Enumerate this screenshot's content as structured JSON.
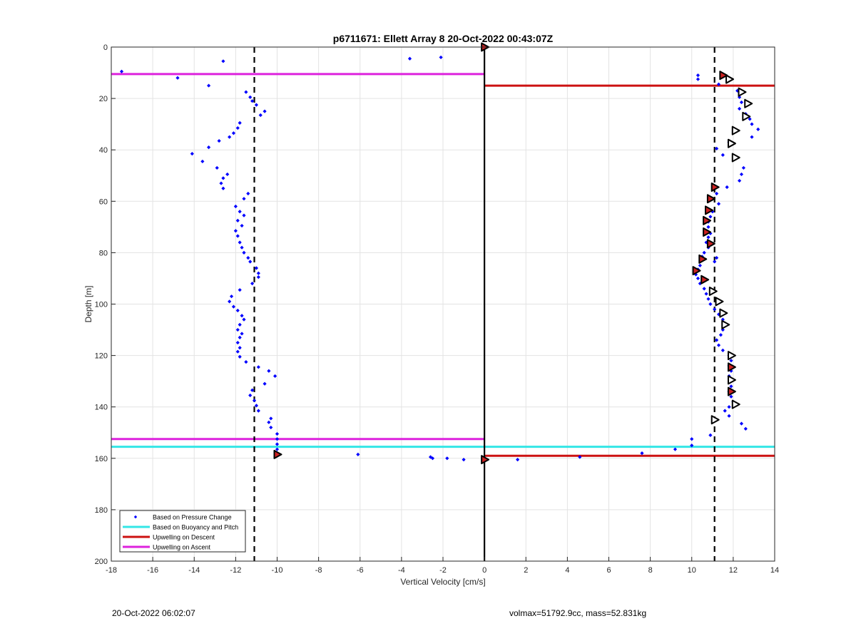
{
  "chart_data": {
    "type": "scatter",
    "title": "p6711671: Ellett Array 8 20-Oct-2022 00:43:07Z",
    "xlabel": "Vertical Velocity [cm/s]",
    "ylabel": "Depth [m]",
    "xlim": [
      -18,
      14
    ],
    "ylim": [
      0,
      200
    ],
    "y_reversed": true,
    "grid": true,
    "legend_location": "bottom-left",
    "x_ticks": [
      -18,
      -16,
      -14,
      -12,
      -10,
      -8,
      -6,
      -4,
      -2,
      0,
      2,
      4,
      6,
      8,
      10,
      12,
      14
    ],
    "y_ticks": [
      0,
      20,
      40,
      60,
      80,
      100,
      120,
      140,
      160,
      180,
      200
    ],
    "legend": [
      {
        "label": "Based on Pressure Change",
        "color": "#0000ff",
        "kind": "point"
      },
      {
        "label": "Based on Buoyancy and Pitch",
        "color": "#33e6e6",
        "kind": "line"
      },
      {
        "label": "Upwelling on Descent",
        "color": "#cc1111",
        "kind": "line"
      },
      {
        "label": "Upwelling on Ascent",
        "color": "#dd22dd",
        "kind": "line"
      }
    ],
    "pressure_change_points": [
      [
        -17.5,
        9.5
      ],
      [
        -14.8,
        12
      ],
      [
        -12.6,
        5.5
      ],
      [
        -13.3,
        15
      ],
      [
        -3.6,
        4.5
      ],
      [
        -2.1,
        4
      ],
      [
        -11.5,
        17.5
      ],
      [
        -11.3,
        19.5
      ],
      [
        -11.2,
        21
      ],
      [
        -11.0,
        22.5
      ],
      [
        -10.6,
        25
      ],
      [
        -10.8,
        26.5
      ],
      [
        -11.8,
        29.5
      ],
      [
        -11.9,
        31.5
      ],
      [
        -12.1,
        33.5
      ],
      [
        -12.3,
        35
      ],
      [
        -12.8,
        36.5
      ],
      [
        -13.3,
        39
      ],
      [
        -14.1,
        41.5
      ],
      [
        -13.6,
        44.5
      ],
      [
        -12.9,
        47
      ],
      [
        -12.4,
        49.5
      ],
      [
        -12.6,
        51
      ],
      [
        -12.7,
        53
      ],
      [
        -12.6,
        55
      ],
      [
        -11.4,
        57
      ],
      [
        -11.6,
        59
      ],
      [
        -12.0,
        62
      ],
      [
        -11.8,
        64
      ],
      [
        -11.6,
        65.5
      ],
      [
        -11.9,
        67.5
      ],
      [
        -11.7,
        69.5
      ],
      [
        -12.0,
        71.5
      ],
      [
        -11.9,
        73.5
      ],
      [
        -11.8,
        76
      ],
      [
        -11.7,
        78
      ],
      [
        -11.6,
        80
      ],
      [
        -11.4,
        82
      ],
      [
        -11.3,
        83.5
      ],
      [
        -11.0,
        86
      ],
      [
        -10.9,
        88
      ],
      [
        -10.9,
        89.5
      ],
      [
        -11.2,
        92
      ],
      [
        -11.8,
        94.5
      ],
      [
        -12.2,
        97
      ],
      [
        -12.3,
        99
      ],
      [
        -12.1,
        101
      ],
      [
        -11.9,
        102.5
      ],
      [
        -11.7,
        104.5
      ],
      [
        -11.6,
        106
      ],
      [
        -11.8,
        108
      ],
      [
        -11.9,
        110
      ],
      [
        -11.7,
        111.5
      ],
      [
        -11.8,
        113
      ],
      [
        -11.9,
        115
      ],
      [
        -11.8,
        117
      ],
      [
        -11.9,
        118.5
      ],
      [
        -11.8,
        120.5
      ],
      [
        -11.5,
        122.5
      ],
      [
        -10.9,
        124.5
      ],
      [
        -10.4,
        126
      ],
      [
        -10.1,
        128
      ],
      [
        -10.6,
        131
      ],
      [
        -11.2,
        133.5
      ],
      [
        -11.3,
        135.5
      ],
      [
        -11.1,
        137.5
      ],
      [
        -11.0,
        139.5
      ],
      [
        -10.9,
        141.5
      ],
      [
        -10.3,
        144.5
      ],
      [
        -10.4,
        146
      ],
      [
        -10.3,
        148
      ],
      [
        -10.0,
        150.5
      ],
      [
        -10.0,
        152.5
      ],
      [
        -10.0,
        154.5
      ],
      [
        -10.0,
        156.5
      ],
      [
        -10.0,
        158.5
      ],
      [
        -6.1,
        158.5
      ],
      [
        -2.6,
        159.5
      ],
      [
        -2.5,
        160
      ],
      [
        -1.8,
        160
      ],
      [
        -1.0,
        160.5
      ],
      [
        0.0,
        160.5
      ],
      [
        1.6,
        160.5
      ],
      [
        4.6,
        159.5
      ],
      [
        7.6,
        158
      ],
      [
        9.2,
        156.5
      ],
      [
        10.0,
        155
      ],
      [
        10.0,
        152.5
      ],
      [
        10.9,
        151
      ],
      [
        10.3,
        11
      ],
      [
        10.3,
        12.5
      ],
      [
        11.3,
        14.5
      ],
      [
        12.2,
        17
      ],
      [
        12.3,
        19.5
      ],
      [
        12.4,
        21.5
      ],
      [
        12.3,
        24
      ],
      [
        12.6,
        26
      ],
      [
        12.8,
        28
      ],
      [
        12.9,
        30
      ],
      [
        13.2,
        32
      ],
      [
        12.9,
        35
      ],
      [
        11.8,
        37
      ],
      [
        11.2,
        39.5
      ],
      [
        11.5,
        42
      ],
      [
        12.5,
        47
      ],
      [
        12.4,
        49.5
      ],
      [
        12.3,
        52
      ],
      [
        11.7,
        54.5
      ],
      [
        11.2,
        57
      ],
      [
        11.3,
        61
      ],
      [
        11.0,
        64
      ],
      [
        10.9,
        66
      ],
      [
        10.8,
        68
      ],
      [
        10.8,
        70
      ],
      [
        10.9,
        72.5
      ],
      [
        10.8,
        74
      ],
      [
        10.7,
        76
      ],
      [
        10.8,
        78
      ],
      [
        10.6,
        80
      ],
      [
        10.5,
        81.5
      ],
      [
        11.2,
        82
      ],
      [
        11.1,
        83.5
      ],
      [
        10.4,
        85
      ],
      [
        10.3,
        86.5
      ],
      [
        10.2,
        88.5
      ],
      [
        10.3,
        90
      ],
      [
        10.4,
        92
      ],
      [
        10.6,
        94
      ],
      [
        10.7,
        96
      ],
      [
        10.8,
        98
      ],
      [
        10.9,
        100
      ],
      [
        11.1,
        102
      ],
      [
        11.3,
        104
      ],
      [
        11.5,
        106
      ],
      [
        11.6,
        108
      ],
      [
        11.5,
        110
      ],
      [
        11.4,
        112
      ],
      [
        11.2,
        114
      ],
      [
        11.3,
        116
      ],
      [
        11.5,
        118
      ],
      [
        11.8,
        120
      ],
      [
        11.9,
        122
      ],
      [
        11.8,
        124
      ],
      [
        11.9,
        126
      ],
      [
        11.8,
        128
      ],
      [
        11.9,
        130
      ],
      [
        11.9,
        132
      ],
      [
        11.8,
        134
      ],
      [
        11.9,
        136
      ],
      [
        12.0,
        138
      ],
      [
        11.8,
        140
      ],
      [
        11.6,
        141.5
      ],
      [
        11.8,
        143.5
      ],
      [
        12.4,
        146.5
      ],
      [
        12.6,
        148.5
      ]
    ],
    "ascent_segment_markers": [
      [
        0.0,
        0.0
      ],
      [
        11.5,
        11
      ],
      [
        -10.0,
        158.5
      ],
      [
        0.0,
        160.5
      ],
      [
        11.1,
        54.5
      ],
      [
        10.9,
        59
      ],
      [
        10.8,
        63.5
      ],
      [
        10.7,
        67.5
      ],
      [
        10.7,
        72
      ],
      [
        10.9,
        76.5
      ],
      [
        10.5,
        82.5
      ],
      [
        10.2,
        87
      ],
      [
        10.6,
        90.5
      ],
      [
        11.9,
        124.5
      ],
      [
        11.9,
        134
      ]
    ],
    "descent_segment_markers": [
      [
        11.8,
        12.5
      ],
      [
        12.4,
        17.5
      ],
      [
        12.7,
        22
      ],
      [
        12.6,
        27
      ],
      [
        12.1,
        32.5
      ],
      [
        11.9,
        37.5
      ],
      [
        12.1,
        43
      ],
      [
        11.0,
        95
      ],
      [
        11.3,
        99
      ],
      [
        11.5,
        103.5
      ],
      [
        11.6,
        108
      ],
      [
        11.9,
        120
      ],
      [
        11.9,
        129.5
      ],
      [
        12.1,
        139
      ],
      [
        11.1,
        145
      ]
    ],
    "vertical_reference_lines": [
      {
        "x": -11.1,
        "style": "dashed"
      },
      {
        "x": 0.0,
        "style": "solid"
      },
      {
        "x": 11.1,
        "style": "dashed"
      }
    ],
    "upwelling_ascent": [
      {
        "depth": 10.5,
        "x_from": -18,
        "x_to": 0
      },
      {
        "depth": 152.5,
        "x_from": -18,
        "x_to": 0
      }
    ],
    "upwelling_descent": [
      {
        "depth": 15.0,
        "x_from": 0,
        "x_to": 14
      },
      {
        "depth": 159.0,
        "x_from": 0,
        "x_to": 14
      }
    ],
    "buoyancy_pitch": [
      {
        "depth": 155.5,
        "x_from": -18,
        "x_to": 14
      }
    ]
  },
  "footer": {
    "left": "20-Oct-2022 06:02:07",
    "right": "volmax=51792.9cc, mass=52.831kg"
  },
  "colors": {
    "points": "#0000ff",
    "buoyancy": "#33e6e6",
    "descent": "#cc1111",
    "ascent": "#dd22dd",
    "grid": "#e3e3e3",
    "marker_fill_red": "#cc2222"
  }
}
